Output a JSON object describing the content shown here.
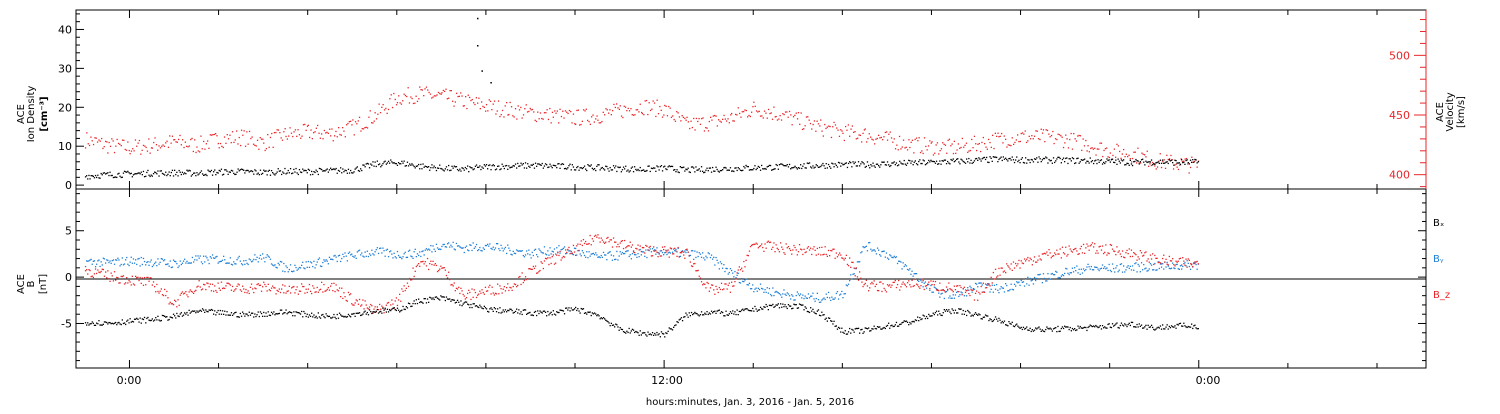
{
  "colors": {
    "black": "#000000",
    "red": "#e8262a",
    "blue": "#1f7fd6"
  },
  "x_axis": {
    "tick_labels": [
      "0:00",
      "12:00",
      "0:00"
    ],
    "caption": "hours:minutes, Jan.  3, 2016 - Jan.  5, 2016"
  },
  "chart_data": [
    {
      "type": "scatter",
      "panel": "top",
      "ylabel_left": [
        "ACE",
        "Ion Density",
        "[cm⁻³]"
      ],
      "ylabel_right": [
        "ACE",
        "Velocity",
        "[km/s]"
      ],
      "x_unit": "hours since Jan 3 00:00",
      "xlim": [
        -1.2,
        29.1
      ],
      "y_left": {
        "ylim": [
          -1,
          45
        ],
        "ticks": [
          0,
          10,
          20,
          30,
          40
        ],
        "tick_labels": [
          "0",
          "10",
          "20",
          "30",
          "40"
        ]
      },
      "y_right": {
        "ylim": [
          388,
          538
        ],
        "ticks": [
          400,
          450,
          500
        ],
        "tick_labels": [
          "400",
          "450",
          "500"
        ]
      },
      "series": [
        {
          "name": "Ion Density",
          "axis": "left",
          "color_key": "black",
          "x": [
            -1.0,
            -0.5,
            0.0,
            0.5,
            1.0,
            1.5,
            2.0,
            2.5,
            3.0,
            3.5,
            4.0,
            4.5,
            5.0,
            5.5,
            6.0,
            6.5,
            7.0,
            7.5,
            8.0,
            8.5,
            9.0,
            9.5,
            10.0,
            10.5,
            11.0,
            11.5,
            12.0,
            12.5,
            13.0,
            13.5,
            14.0,
            14.5,
            15.0,
            15.5,
            16.0,
            16.5,
            17.0,
            17.5,
            18.0,
            18.5,
            19.0,
            19.5,
            20.0,
            20.5,
            21.0,
            21.5,
            22.0,
            22.5,
            23.0,
            23.5,
            24.0
          ],
          "values": [
            2.5,
            2.8,
            3.0,
            3.2,
            3.3,
            3.2,
            3.5,
            3.6,
            3.4,
            3.7,
            3.6,
            3.8,
            4.0,
            5.5,
            6.0,
            5.0,
            4.5,
            4.2,
            4.8,
            5.0,
            5.2,
            5.0,
            4.8,
            4.6,
            4.4,
            4.2,
            4.5,
            4.0,
            4.2,
            4.4,
            4.6,
            4.8,
            5.0,
            5.2,
            5.4,
            5.4,
            5.6,
            5.8,
            6.0,
            6.2,
            6.5,
            6.8,
            6.6,
            6.6,
            6.5,
            6.4,
            6.2,
            6.0,
            6.2,
            6.0,
            6.0
          ],
          "spikes": [
            [
              7.8,
              43.0
            ],
            [
              7.8,
              36.0
            ],
            [
              7.9,
              29.5
            ],
            [
              8.1,
              26.5
            ]
          ]
        },
        {
          "name": "Velocity",
          "axis": "right",
          "color_key": "red",
          "x": [
            -1.0,
            -0.5,
            0.0,
            0.5,
            1.0,
            1.5,
            2.0,
            2.5,
            3.0,
            3.5,
            4.0,
            4.5,
            5.0,
            5.5,
            6.0,
            6.5,
            7.0,
            7.5,
            8.0,
            8.5,
            9.0,
            9.5,
            10.0,
            10.5,
            11.0,
            11.5,
            12.0,
            12.5,
            13.0,
            13.5,
            14.0,
            14.5,
            15.0,
            15.5,
            16.0,
            16.5,
            17.0,
            17.5,
            18.0,
            18.5,
            19.0,
            19.5,
            20.0,
            20.5,
            21.0,
            21.5,
            22.0,
            22.5,
            23.0,
            23.5,
            24.0
          ],
          "values": [
            430,
            425,
            423,
            425,
            428,
            425,
            430,
            432,
            427,
            434,
            436,
            435,
            440,
            450,
            465,
            468,
            466,
            462,
            458,
            455,
            452,
            450,
            448,
            450,
            454,
            458,
            455,
            442,
            444,
            448,
            456,
            452,
            446,
            440,
            436,
            434,
            430,
            426,
            424,
            423,
            426,
            430,
            432,
            432,
            430,
            426,
            420,
            418,
            412,
            410,
            408
          ]
        }
      ]
    },
    {
      "type": "scatter",
      "panel": "bottom",
      "ylabel_left": [
        "ACE",
        "B",
        "[nT]"
      ],
      "x_unit": "hours since Jan 3 00:00",
      "xlim": [
        -1.2,
        29.1
      ],
      "ylim": [
        -9.8,
        9.5
      ],
      "yticks": [
        -5,
        0,
        5
      ],
      "ytick_labels": [
        "-5",
        "0",
        "5"
      ],
      "zero_line": true,
      "legend_placement": "right",
      "series": [
        {
          "name": "Bₓ",
          "color_key": "black",
          "x": [
            -1.0,
            -0.5,
            0.0,
            0.5,
            1.0,
            1.5,
            2.0,
            2.5,
            3.0,
            3.5,
            4.0,
            4.5,
            5.0,
            5.5,
            6.0,
            6.5,
            7.0,
            7.5,
            8.0,
            8.5,
            9.0,
            9.5,
            10.0,
            10.5,
            11.0,
            11.5,
            12.0,
            12.5,
            13.0,
            13.5,
            14.0,
            14.5,
            15.0,
            15.5,
            16.0,
            16.5,
            17.0,
            17.5,
            18.0,
            18.5,
            19.0,
            19.5,
            20.0,
            20.5,
            21.0,
            21.5,
            22.0,
            22.5,
            23.0,
            23.5,
            24.0
          ],
          "values": [
            -4.8,
            -4.9,
            -4.7,
            -4.5,
            -4.2,
            -3.6,
            -3.8,
            -4.0,
            -3.9,
            -3.7,
            -4.0,
            -4.2,
            -3.9,
            -3.6,
            -3.5,
            -2.5,
            -2.2,
            -2.8,
            -3.4,
            -3.6,
            -3.8,
            -3.8,
            -3.4,
            -4.0,
            -5.6,
            -6.0,
            -6.1,
            -4.0,
            -3.7,
            -3.9,
            -3.4,
            -3.0,
            -3.1,
            -3.8,
            -5.8,
            -5.7,
            -5.2,
            -4.8,
            -4.0,
            -3.5,
            -4.0,
            -4.6,
            -5.4,
            -5.6,
            -5.5,
            -5.4,
            -5.2,
            -5.0,
            -5.4,
            -5.2,
            -5.2
          ]
        },
        {
          "name": "Bᵧ",
          "color_key": "blue",
          "x": [
            -1.0,
            -0.5,
            0.0,
            0.5,
            1.0,
            1.5,
            2.0,
            2.5,
            3.0,
            3.5,
            4.0,
            4.5,
            5.0,
            5.5,
            6.0,
            6.5,
            7.0,
            7.5,
            8.0,
            8.5,
            9.0,
            9.5,
            10.0,
            10.5,
            11.0,
            11.5,
            12.0,
            12.5,
            13.0,
            13.5,
            14.0,
            14.5,
            15.0,
            15.5,
            16.0,
            16.5,
            17.0,
            17.5,
            18.0,
            18.5,
            19.0,
            19.5,
            20.0,
            20.5,
            21.0,
            21.5,
            22.0,
            22.5,
            23.0,
            23.5,
            24.0
          ],
          "values": [
            1.7,
            1.6,
            1.8,
            1.7,
            1.5,
            1.9,
            2.0,
            1.8,
            2.2,
            1.0,
            1.4,
            1.9,
            2.4,
            2.8,
            2.5,
            2.6,
            3.6,
            3.2,
            3.4,
            3.0,
            2.6,
            3.0,
            2.8,
            2.2,
            2.4,
            2.6,
            2.8,
            2.6,
            2.2,
            0.5,
            -1.0,
            -1.6,
            -2.0,
            -2.2,
            -1.8,
            3.5,
            2.5,
            0.8,
            -1.4,
            -2.0,
            -1.0,
            -1.2,
            -0.6,
            0.0,
            0.6,
            1.0,
            1.0,
            1.1,
            1.2,
            1.3,
            1.4
          ]
        },
        {
          "name": "B_z",
          "color_key": "red",
          "x": [
            -1.0,
            -0.5,
            0.0,
            0.5,
            1.0,
            1.5,
            2.0,
            2.5,
            3.0,
            3.5,
            4.0,
            4.5,
            5.0,
            5.5,
            6.0,
            6.5,
            7.0,
            7.5,
            8.0,
            8.5,
            9.0,
            9.5,
            10.0,
            10.5,
            11.0,
            11.5,
            12.0,
            12.5,
            13.0,
            13.5,
            14.0,
            14.5,
            15.0,
            15.5,
            16.0,
            16.5,
            17.0,
            17.5,
            18.0,
            18.5,
            19.0,
            19.5,
            20.0,
            20.5,
            21.0,
            21.5,
            22.0,
            22.5,
            23.0,
            23.5,
            24.0
          ],
          "values": [
            0.8,
            0.2,
            -0.2,
            -0.6,
            -2.8,
            -0.8,
            -1.0,
            -1.2,
            -1.0,
            -1.4,
            -1.2,
            -0.8,
            -2.4,
            -3.6,
            -2.6,
            1.8,
            1.0,
            -2.0,
            -1.4,
            -1.0,
            0.6,
            2.0,
            3.0,
            4.5,
            3.6,
            3.0,
            2.8,
            2.6,
            -1.4,
            -1.0,
            3.6,
            3.2,
            3.0,
            2.8,
            2.6,
            -0.8,
            -1.0,
            -0.6,
            -0.8,
            -1.2,
            -2.0,
            0.8,
            1.6,
            2.4,
            2.8,
            3.2,
            3.0,
            2.6,
            2.0,
            1.6,
            1.5
          ]
        }
      ]
    }
  ]
}
